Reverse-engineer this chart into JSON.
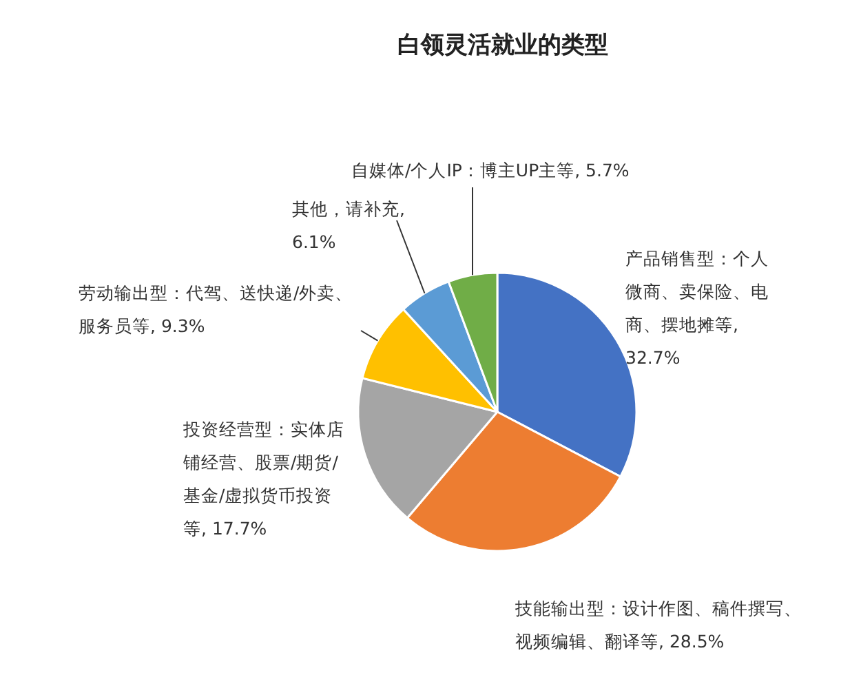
{
  "chart_data": {
    "type": "pie",
    "title": "白领灵活就业的类型",
    "categories": [
      "产品销售型：个人微商、卖保险、电商、摆地摊等",
      "技能输出型：设计作图、稿件撰写、视频编辑、翻译等",
      "投资经营型：实体店铺经营、股票/期货/基金/虚拟货币投资等",
      "劳动输出型：代驾、送快递/外卖、服务员等",
      "其他，请补充",
      "自媒体/个人IP：博主UP主等"
    ],
    "values": [
      32.7,
      28.5,
      17.7,
      9.3,
      6.1,
      5.7
    ],
    "value_labels": [
      ", 32.7%",
      ", 28.5%",
      ", 17.7%",
      ", 9.3%",
      ", 6.1%",
      ", 5.7%"
    ],
    "colors": [
      "#4472c4",
      "#ed7d31",
      "#a5a5a5",
      "#ffc000",
      "#5b9bd5",
      "#70ad47"
    ]
  }
}
